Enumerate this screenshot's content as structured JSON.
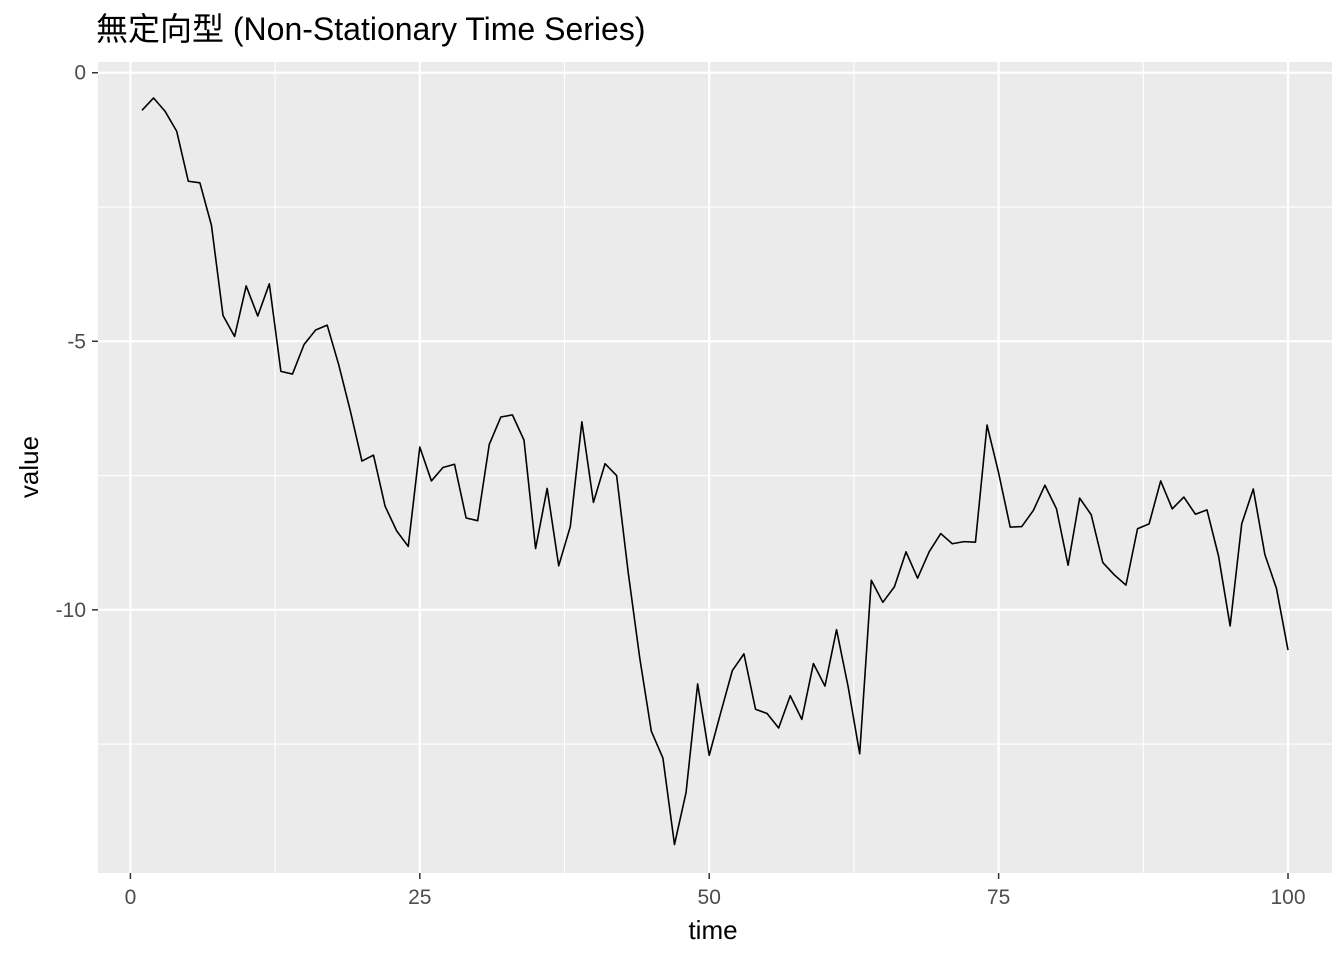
{
  "chart_data": {
    "type": "line",
    "title": "無定向型 (Non-Stationary Time Series)",
    "xlabel": "time",
    "ylabel": "value",
    "xlim": [
      -2.8,
      103.8
    ],
    "ylim": [
      -14.9,
      0.2
    ],
    "x_ticks": [
      0,
      25,
      50,
      75,
      100
    ],
    "y_ticks": [
      0,
      -5,
      -10
    ],
    "x_tick_labels": [
      "0",
      "25",
      "50",
      "75",
      "100"
    ],
    "y_tick_labels": [
      "0",
      "-5",
      "-10"
    ],
    "grid": true,
    "legend": "none",
    "series": [
      {
        "color": "#000000",
        "x": [
          1,
          2,
          3,
          4,
          5,
          6,
          7,
          8,
          9,
          10,
          11,
          12,
          13,
          14,
          15,
          16,
          17,
          18,
          19,
          20,
          21,
          22,
          23,
          24,
          25,
          26,
          27,
          28,
          29,
          30,
          31,
          32,
          33,
          34,
          35,
          36,
          37,
          38,
          39,
          40,
          41,
          42,
          43,
          44,
          45,
          46,
          47,
          48,
          49,
          50,
          51,
          52,
          53,
          54,
          55,
          56,
          57,
          58,
          59,
          60,
          61,
          62,
          63,
          64,
          65,
          66,
          67,
          68,
          69,
          70,
          71,
          72,
          73,
          74,
          75,
          76,
          77,
          78,
          79,
          80,
          81,
          82,
          83,
          84,
          85,
          86,
          87,
          88,
          89,
          90,
          91,
          92,
          93,
          94,
          95,
          96,
          97,
          98,
          99,
          100
        ],
        "y": [
          -0.7,
          -0.47,
          -0.72,
          -1.09,
          -2.02,
          -2.05,
          -2.84,
          -4.52,
          -4.91,
          -3.97,
          -4.53,
          -3.93,
          -5.56,
          -5.61,
          -5.06,
          -4.79,
          -4.7,
          -5.44,
          -6.3,
          -7.23,
          -7.12,
          -8.07,
          -8.53,
          -8.82,
          -6.97,
          -7.6,
          -7.35,
          -7.29,
          -8.29,
          -8.34,
          -6.92,
          -6.41,
          -6.37,
          -6.84,
          -8.86,
          -7.74,
          -9.18,
          -8.45,
          -6.5,
          -8.0,
          -7.28,
          -7.5,
          -9.3,
          -10.9,
          -12.26,
          -12.76,
          -14.37,
          -13.4,
          -11.38,
          -12.71,
          -11.91,
          -11.13,
          -10.82,
          -11.85,
          -11.93,
          -12.2,
          -11.6,
          -12.04,
          -11.0,
          -11.42,
          -10.37,
          -11.43,
          -12.68,
          -9.45,
          -9.86,
          -9.57,
          -8.92,
          -9.41,
          -8.92,
          -8.58,
          -8.77,
          -8.73,
          -8.74,
          -6.56,
          -7.45,
          -8.46,
          -8.45,
          -8.15,
          -7.68,
          -8.12,
          -9.17,
          -7.92,
          -8.23,
          -9.12,
          -9.35,
          -9.54,
          -8.49,
          -8.4,
          -7.6,
          -8.12,
          -7.9,
          -8.22,
          -8.14,
          -9.0,
          -10.3,
          -8.4,
          -7.75,
          -8.97,
          -9.6,
          -10.75
        ]
      }
    ]
  }
}
